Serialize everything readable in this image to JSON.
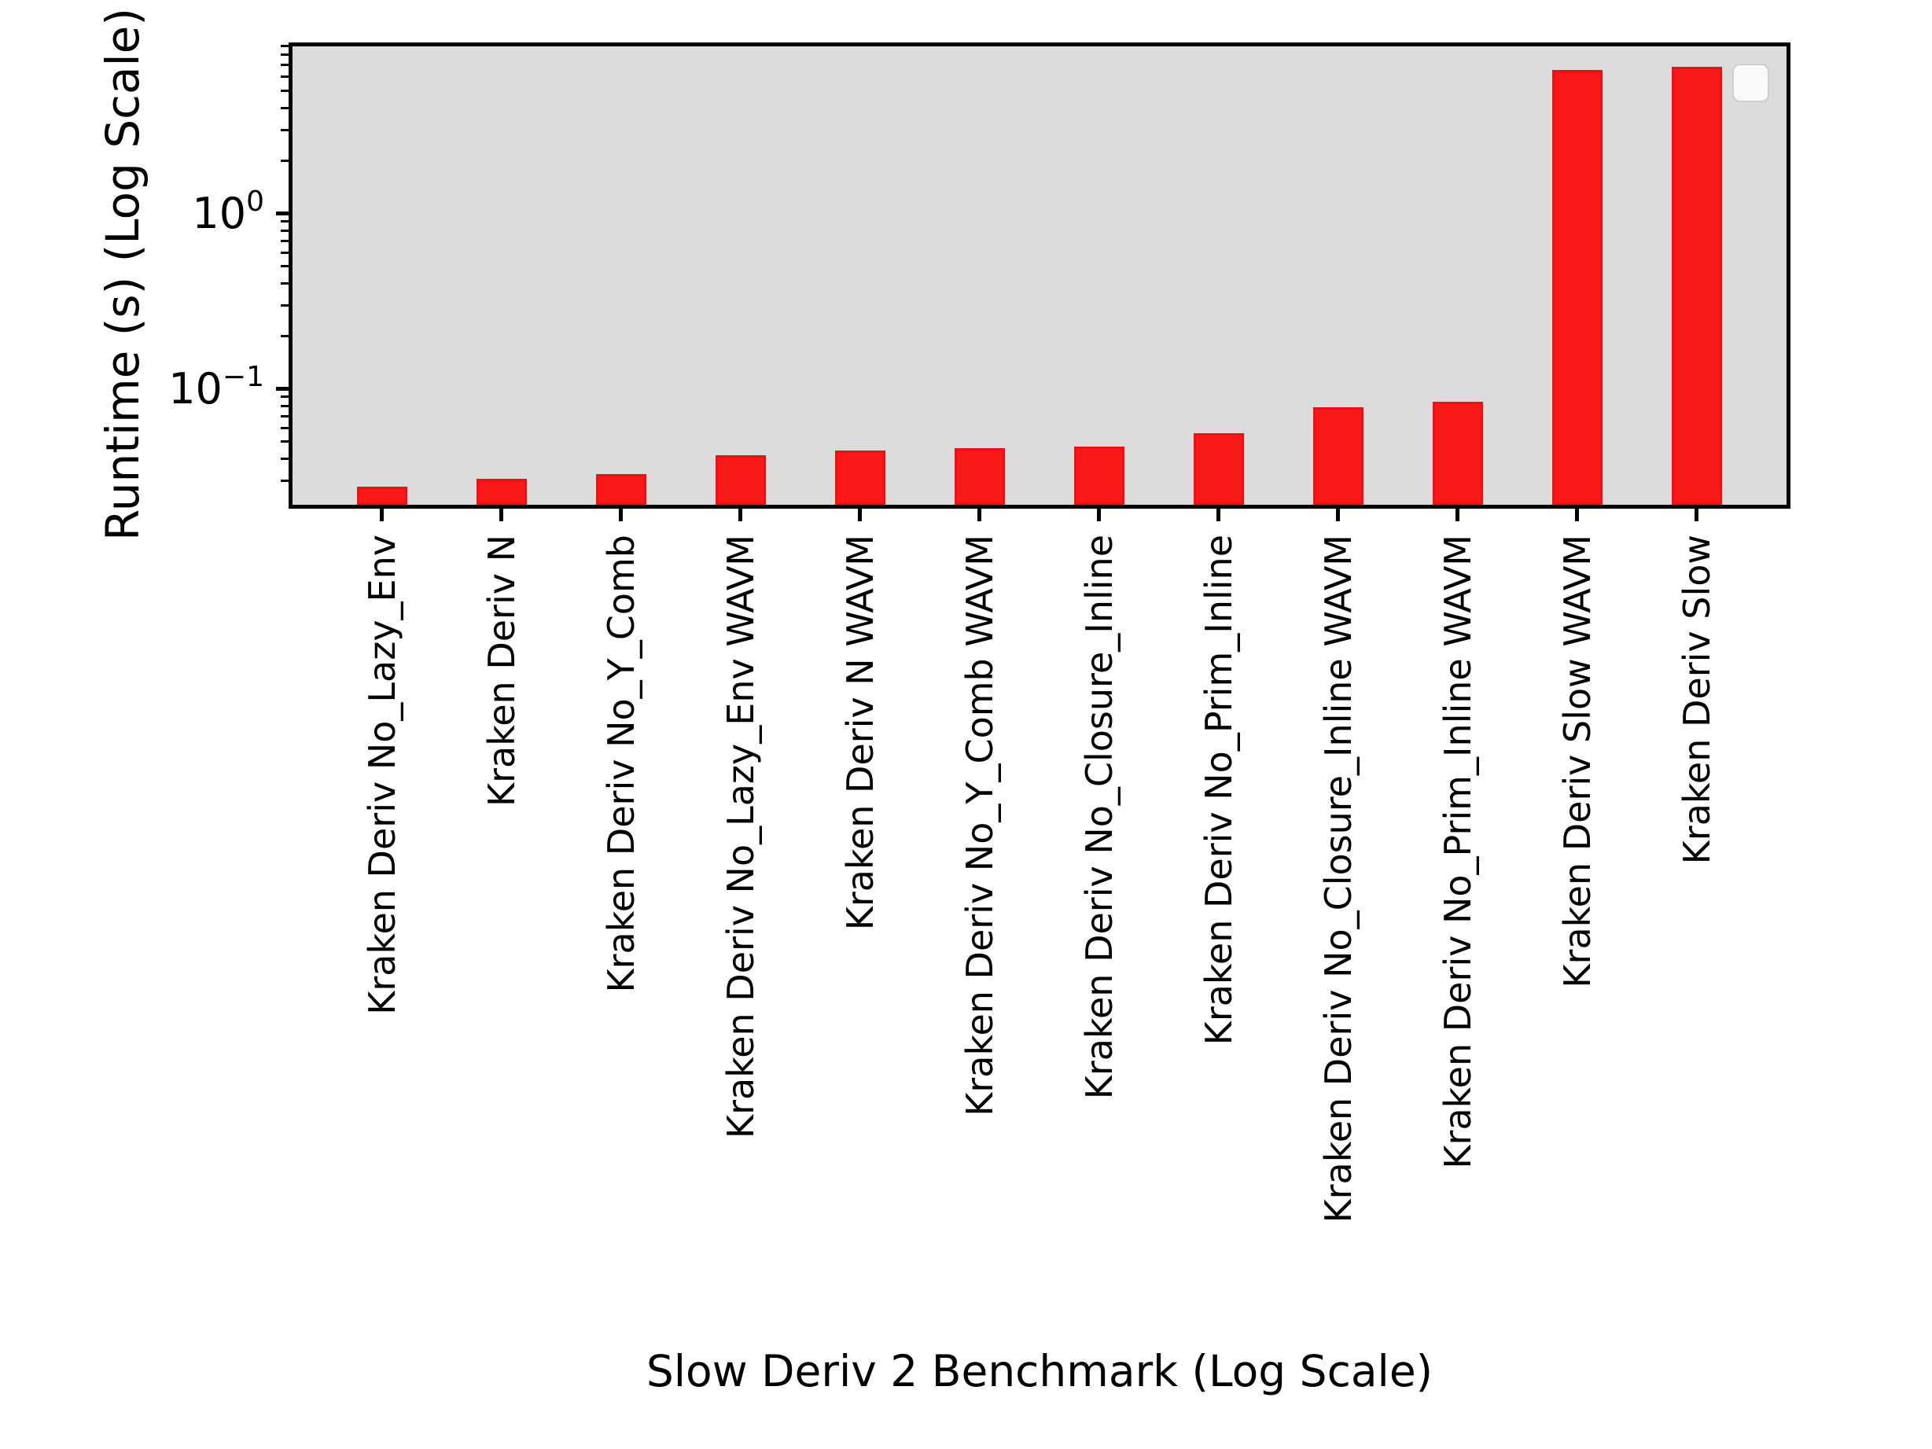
{
  "figure": {
    "background": "#ffffff",
    "plot_background": "#dcdcdc",
    "spine_color": "#000000"
  },
  "chart_data": {
    "type": "bar",
    "title": "",
    "xlabel": "Slow Deriv 2 Benchmark (Log Scale)",
    "ylabel": "Runtime (s) (Log Scale)",
    "yscale": "log",
    "ylim": [
      0.022,
      9.0
    ],
    "grid": false,
    "bar_color": "#f71a18",
    "bar_edge_color": "#fa0a0e",
    "categories": [
      "Kraken Deriv No_Lazy_Env",
      "Kraken Deriv N",
      "Kraken Deriv No_Y_Comb",
      "Kraken Deriv No_Lazy_Env WAVM",
      "Kraken Deriv N WAVM",
      "Kraken Deriv No_Y_Comb WAVM",
      "Kraken Deriv No_Closure_Inline",
      "Kraken Deriv No_Prim_Inline",
      "Kraken Deriv No_Closure_Inline WAVM",
      "Kraken Deriv No_Prim_Inline WAVM",
      "Kraken Deriv Slow WAVM",
      "Kraken Deriv Slow"
    ],
    "values": [
      0.028,
      0.031,
      0.033,
      0.042,
      0.045,
      0.046,
      0.047,
      0.056,
      0.079,
      0.085,
      6.6,
      6.9
    ],
    "yticks": [
      {
        "base": "10",
        "exp": "0",
        "value": 1
      },
      {
        "base": "10",
        "exp": "−1",
        "value": 0.1
      }
    ],
    "legend": {
      "present": true,
      "entries": []
    }
  }
}
